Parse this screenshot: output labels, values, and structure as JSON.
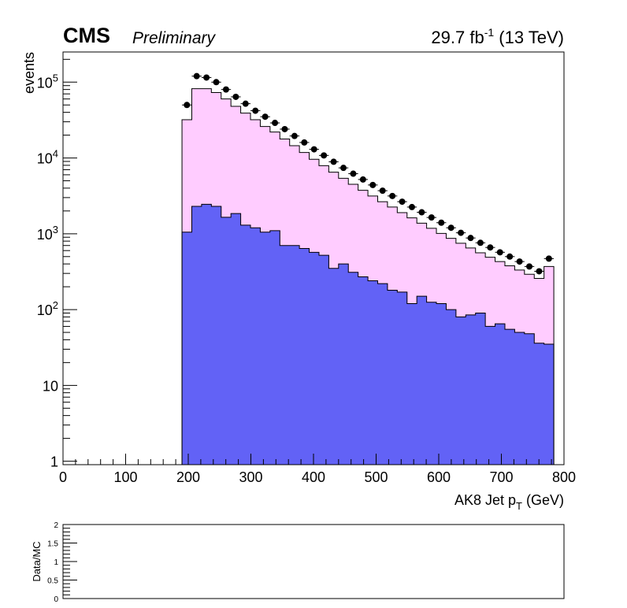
{
  "header": {
    "experiment": "CMS",
    "status": "Preliminary",
    "lumi_value": "29.7 fb",
    "lumi_exp": "-1",
    "energy": " (13 TeV)"
  },
  "chart_data": [
    {
      "type": "bar",
      "style": "stacked-histogram-with-data-points",
      "xlabel": "AK8 Jet p",
      "xlabel_sub": "T",
      "xlabel_unit": " (GeV)",
      "ylabel": "events",
      "xlim": [
        0,
        800
      ],
      "ylim": [
        0.9,
        250000
      ],
      "yscale": "log",
      "x_ticks": [
        "0",
        "100",
        "200",
        "300",
        "400",
        "500",
        "600",
        "700",
        "800"
      ],
      "y_ticks": [
        {
          "value": 1,
          "base": "1",
          "exp": ""
        },
        {
          "value": 10,
          "base": "10",
          "exp": ""
        },
        {
          "value": 100,
          "base": "10",
          "exp": "2"
        },
        {
          "value": 1000,
          "base": "10",
          "exp": "3"
        },
        {
          "value": 10000,
          "base": "10",
          "exp": "4"
        },
        {
          "value": 100000,
          "base": "10",
          "exp": "5"
        }
      ],
      "bin_edges_start": 190,
      "bin_width": 15.625,
      "colors": {
        "background": "#6262f6",
        "signal": "#ffccff",
        "data": "#000000"
      },
      "series": [
        {
          "key": "background",
          "values": [
            1050,
            2300,
            2450,
            2300,
            1650,
            1850,
            1300,
            1200,
            1050,
            1100,
            700,
            700,
            640,
            570,
            520,
            350,
            400,
            310,
            270,
            240,
            220,
            180,
            170,
            120,
            150,
            125,
            120,
            100,
            80,
            85,
            90,
            60,
            65,
            55,
            50,
            48,
            36,
            35
          ]
        },
        {
          "key": "stack_total",
          "values": [
            32000,
            82000,
            82000,
            73000,
            60000,
            48000,
            39000,
            32000,
            26000,
            22000,
            17800,
            14500,
            11800,
            9600,
            7900,
            6500,
            5400,
            4500,
            3750,
            3150,
            2650,
            2250,
            1900,
            1620,
            1380,
            1180,
            1010,
            870,
            750,
            650,
            560,
            490,
            430,
            378,
            332,
            292,
            258,
            370
          ]
        },
        {
          "key": "data",
          "values": [
            50000,
            120000,
            115000,
            100000,
            80000,
            64000,
            52000,
            42000,
            35000,
            29000,
            24000,
            19500,
            16000,
            13000,
            10800,
            8900,
            7400,
            6200,
            5200,
            4400,
            3700,
            3150,
            2650,
            2250,
            1920,
            1640,
            1400,
            1200,
            1030,
            880,
            760,
            660,
            570,
            500,
            430,
            370,
            320,
            470
          ]
        }
      ]
    },
    {
      "type": "line",
      "role": "ratio-panel",
      "ylabel": "Data/MC",
      "xlim": [
        0,
        800
      ],
      "ylim": [
        0,
        2
      ],
      "y_ticks": [
        "0",
        "0.5",
        "1",
        "1.5",
        "2"
      ],
      "series": []
    }
  ]
}
